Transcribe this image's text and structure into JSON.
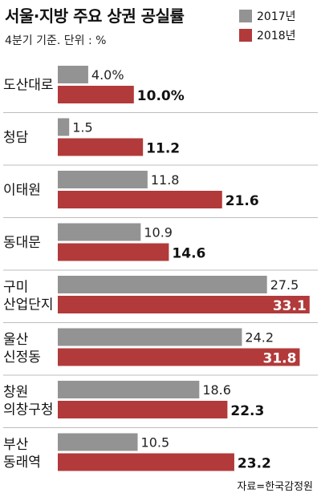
{
  "chart_data": {
    "type": "bar",
    "orientation": "horizontal",
    "title": "서울·지방 주요 상권 공실률",
    "subtitle": "4분기 기준. 단위 : %",
    "categories": [
      [
        "도산대로"
      ],
      [
        "청담"
      ],
      [
        "이태원"
      ],
      [
        "동대문"
      ],
      [
        "구미",
        "산업단지"
      ],
      [
        "울산",
        "신정동"
      ],
      [
        "창원",
        "의창구청"
      ],
      [
        "부산",
        "동래역"
      ]
    ],
    "series": [
      {
        "name": "2017년",
        "color": "#939393",
        "values": [
          4.0,
          1.5,
          11.8,
          10.9,
          27.5,
          24.2,
          18.6,
          10.5
        ],
        "labels": [
          "4.0%",
          "1.5",
          "11.8",
          "10.9",
          "27.5",
          "24.2",
          "18.6",
          "10.5"
        ]
      },
      {
        "name": "2018년",
        "color": "#b23a3a",
        "values": [
          10.0,
          11.2,
          21.6,
          14.6,
          33.1,
          31.8,
          22.3,
          23.2
        ],
        "labels": [
          "10.0%",
          "11.2",
          "21.6",
          "14.6",
          "33.1",
          "31.8",
          "22.3",
          "23.2"
        ]
      }
    ],
    "source": "자료=한국감정원",
    "legend_position": "top-right",
    "grid": false
  }
}
